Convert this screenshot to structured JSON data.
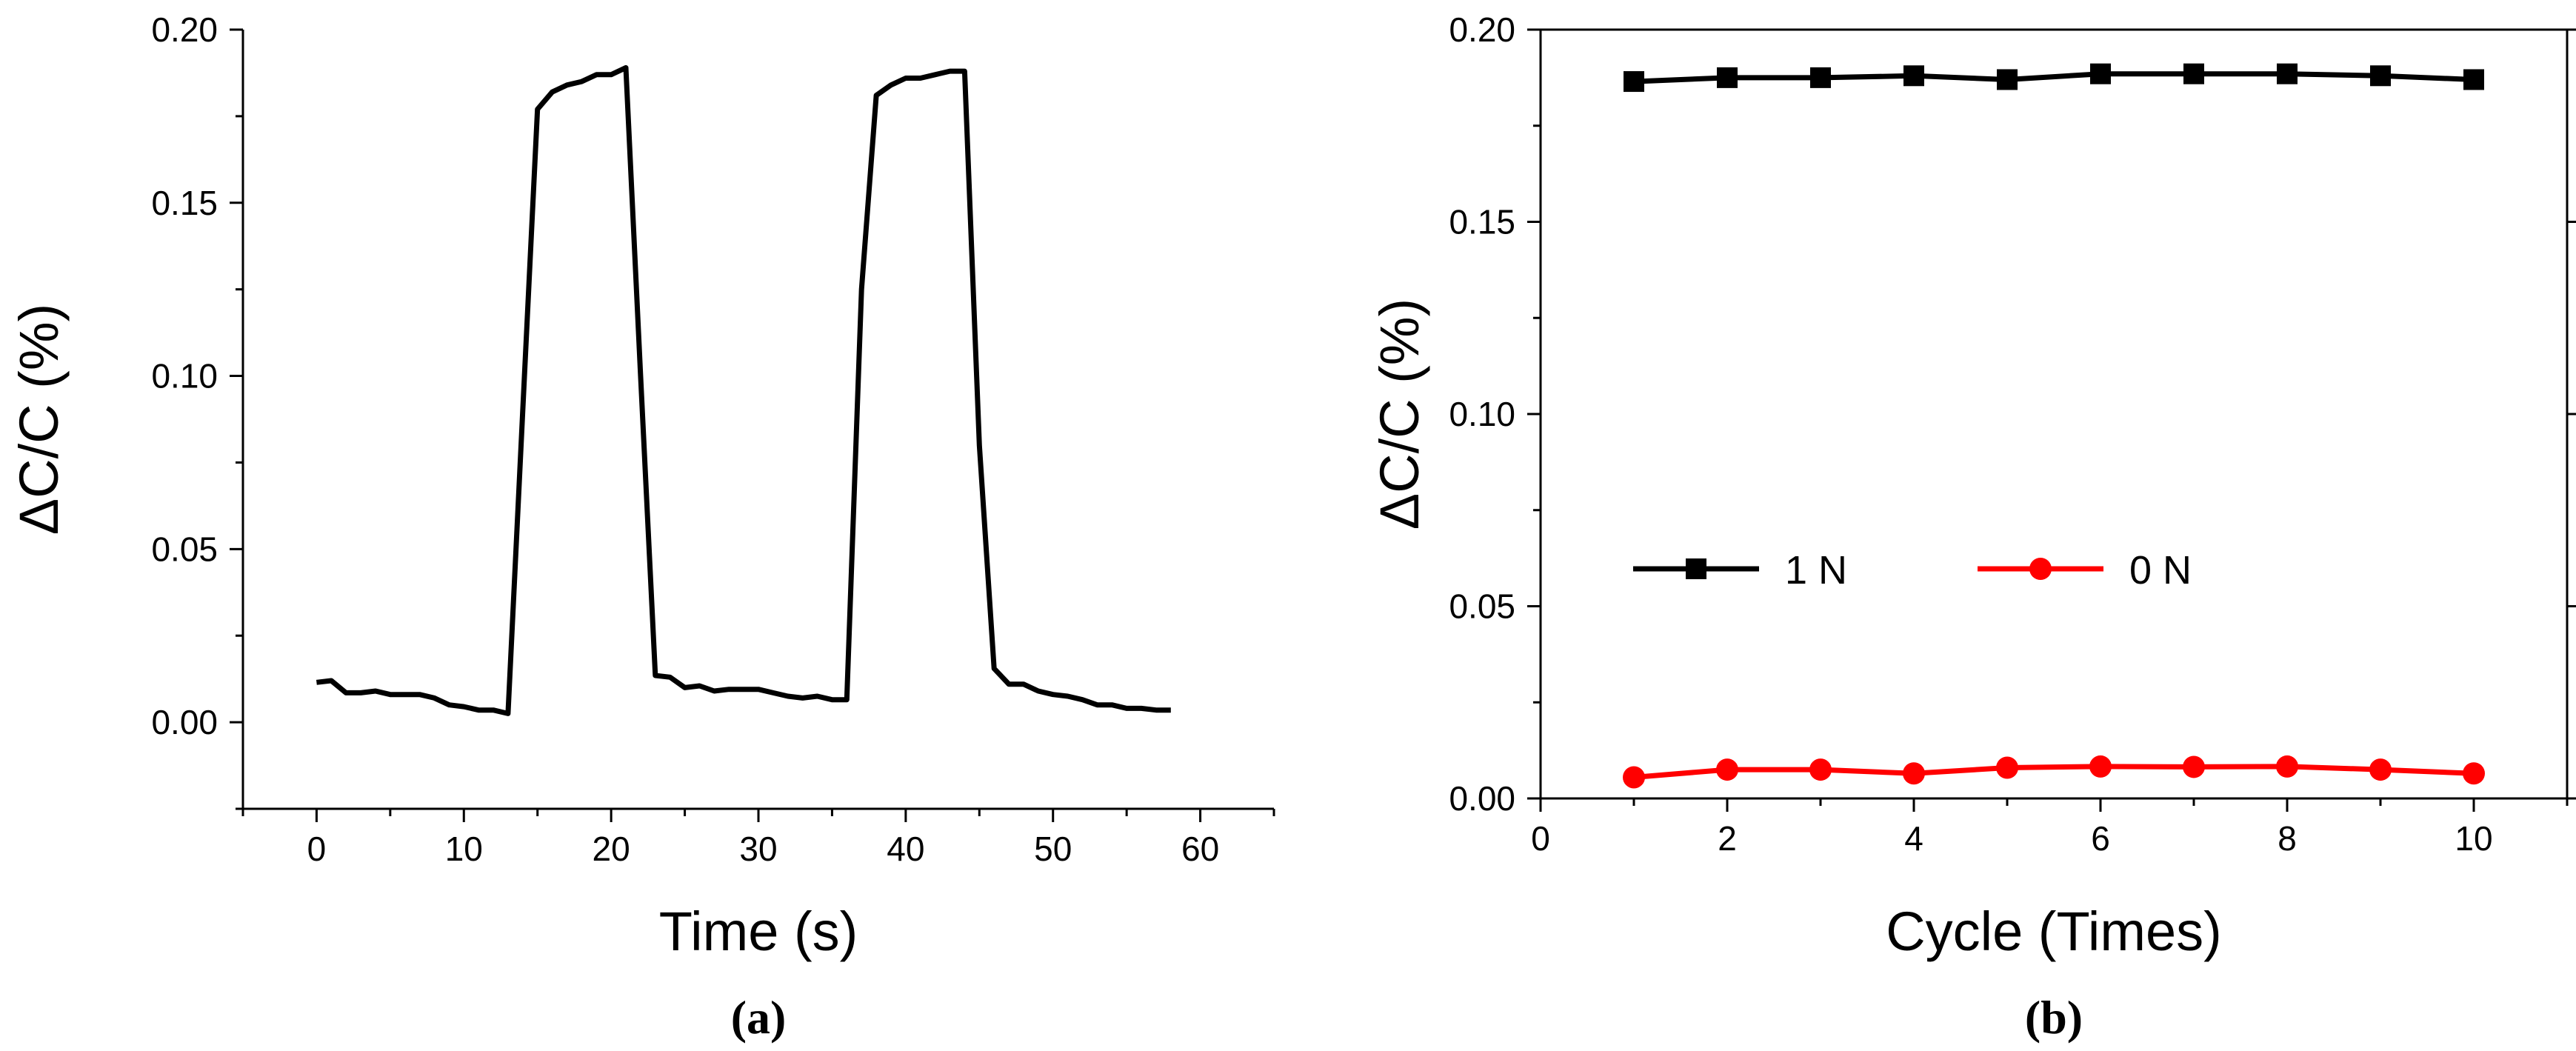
{
  "chart_data": [
    {
      "type": "line",
      "caption": "(a)",
      "xlabel": "Time (s)",
      "ylabel": "ΔC/C (%)",
      "xlim": [
        -5,
        65
      ],
      "ylim": [
        -0.025,
        0.2
      ],
      "xticks": [
        0,
        10,
        20,
        30,
        40,
        50,
        60
      ],
      "xtick_labels": [
        "0",
        "10",
        "20",
        "30",
        "40",
        "50",
        "60"
      ],
      "yticks": [
        0.0,
        0.05,
        0.1,
        0.15,
        0.2
      ],
      "ytick_labels": [
        "0.00",
        "0.05",
        "0.10",
        "0.15",
        "0.20"
      ],
      "series": [
        {
          "name": "",
          "color": "#000000",
          "x": [
            0,
            1,
            2,
            3,
            4,
            5,
            6,
            7,
            8,
            9,
            10,
            11,
            12,
            13,
            14,
            15,
            16,
            17,
            18,
            19,
            20,
            21,
            22,
            23,
            24,
            25,
            26,
            27,
            28,
            29,
            30,
            31,
            32,
            33,
            34,
            35,
            36,
            37,
            38,
            39,
            40,
            41,
            42,
            43,
            44,
            45,
            46,
            47,
            48,
            49,
            50,
            51,
            52,
            53,
            54,
            55,
            56,
            57,
            58
          ],
          "y": [
            0.0115,
            0.012,
            0.0085,
            0.0085,
            0.009,
            0.008,
            0.008,
            0.008,
            0.007,
            0.005,
            0.0045,
            0.0035,
            0.0035,
            0.0025,
            0.09,
            0.177,
            0.182,
            0.184,
            0.185,
            0.187,
            0.187,
            0.189,
            0.1,
            0.0135,
            0.013,
            0.01,
            0.0105,
            0.009,
            0.0095,
            0.0095,
            0.0095,
            0.0085,
            0.0075,
            0.007,
            0.0075,
            0.0065,
            0.0065,
            0.125,
            0.181,
            0.184,
            0.186,
            0.186,
            0.187,
            0.188,
            0.188,
            0.08,
            0.0155,
            0.011,
            0.011,
            0.009,
            0.008,
            0.0075,
            0.0065,
            0.005,
            0.005,
            0.004,
            0.004,
            0.0035,
            0.0035
          ]
        }
      ]
    },
    {
      "type": "line",
      "caption": "(b)",
      "xlabel": "Cycle (Times)",
      "ylabel": "ΔC/C (%)",
      "xlim": [
        0,
        11
      ],
      "ylim": [
        0,
        0.2
      ],
      "xticks": [
        0,
        2,
        4,
        6,
        8,
        10
      ],
      "xtick_labels": [
        "0",
        "2",
        "4",
        "6",
        "8",
        "10"
      ],
      "yticks": [
        0.0,
        0.05,
        0.1,
        0.15,
        0.2
      ],
      "ytick_labels": [
        "0.00",
        "0.05",
        "0.10",
        "0.15",
        "0.20"
      ],
      "legend_position": "right",
      "series": [
        {
          "name": "1 N",
          "color": "#000000",
          "marker": "square",
          "x": [
            1,
            2,
            3,
            4,
            5,
            6,
            7,
            8,
            9,
            10
          ],
          "y": [
            0.1865,
            0.1875,
            0.1875,
            0.188,
            0.187,
            0.1885,
            0.1885,
            0.1885,
            0.188,
            0.187
          ]
        },
        {
          "name": "0 N",
          "color": "#ff0000",
          "marker": "circle",
          "x": [
            1,
            2,
            3,
            4,
            5,
            6,
            7,
            8,
            9,
            10
          ],
          "y": [
            0.0055,
            0.0075,
            0.0075,
            0.0065,
            0.008,
            0.0083,
            0.0082,
            0.0083,
            0.0075,
            0.0065
          ]
        }
      ]
    }
  ]
}
